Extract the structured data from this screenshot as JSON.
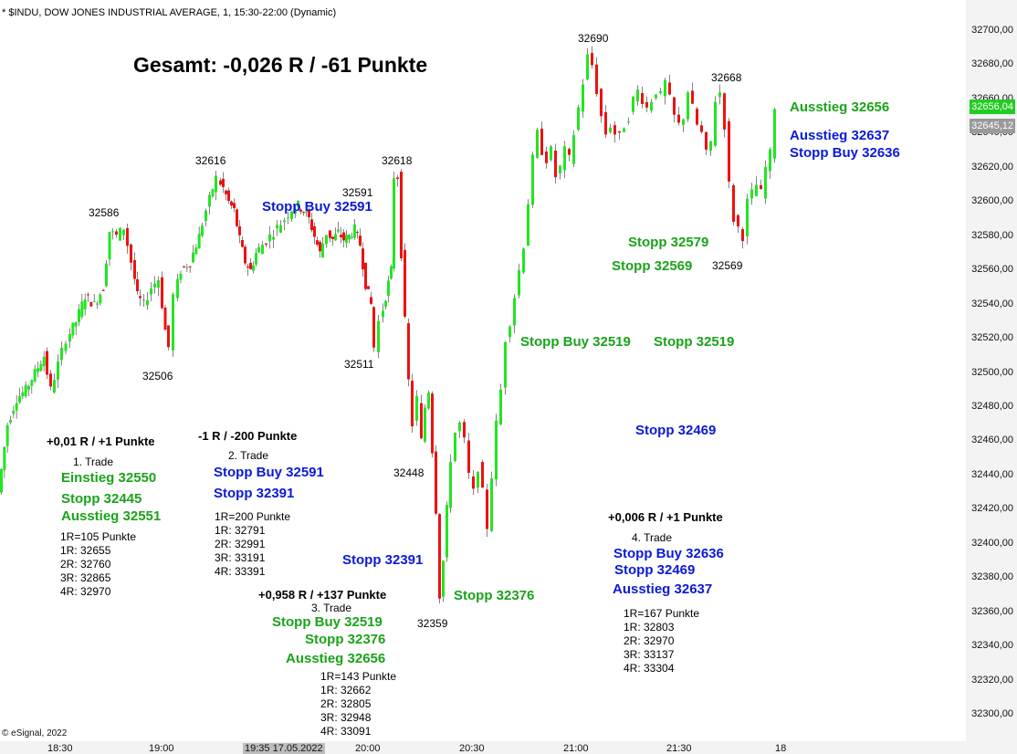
{
  "header": {
    "symbol_line": "* $INDU, DOW JONES INDUSTRIAL AVERAGE, 1, 15:30-22:00 (Dynamic)"
  },
  "summary": "Gesamt: -0,026 R / -61 Punkte",
  "copyright": "© eSignal, 2022",
  "colors": {
    "up": "#22e622",
    "down": "#ee1111",
    "green_text": "#1aa31a",
    "blue_text": "#0a1ad6"
  },
  "price_labels": {
    "p32586": "32586",
    "p32616": "32616",
    "p32591": "32591",
    "p32618": "32618",
    "p32690": "32690",
    "p32668": "32668",
    "p32506": "32506",
    "p32511": "32511",
    "p32448": "32448",
    "p32359": "32359",
    "p32569": "32569"
  },
  "annotations": {
    "stopp_buy_32591_top": "Stopp Buy 32591",
    "ausstieg_32656": "Ausstieg 32656",
    "ausstieg_32637": "Ausstieg 32637",
    "stopp_buy_32636": "Stopp Buy 32636",
    "stopp_32579": "Stopp 32579",
    "stopp_32569": "Stopp 32569",
    "stopp_buy_32519": "Stopp Buy 32519",
    "stopp_32519": "Stopp 32519",
    "stopp_32469": "Stopp 32469",
    "stopp_32391": "Stopp 32391",
    "stopp_32376": "Stopp 32376"
  },
  "trades": [
    {
      "result": "+0,01 R / +1 Punkte",
      "name": "1. Trade",
      "lines": [
        "Einstieg 32550",
        "Stopp 32445",
        "Ausstieg 32551"
      ],
      "targets": [
        "1R=105 Punkte",
        "1R: 32655",
        "2R: 32760",
        "3R: 32865",
        "4R: 32970"
      ]
    },
    {
      "result": "-1 R / -200 Punkte",
      "name": "2. Trade",
      "lines": [
        "Stopp Buy 32591",
        "Stopp 32391"
      ],
      "targets": [
        "1R=200 Punkte",
        "1R: 32791",
        "2R: 32991",
        "3R: 33191",
        "4R: 33391"
      ]
    },
    {
      "result": "+0,958 R / +137 Punkte",
      "name": "3. Trade",
      "lines": [
        "Stopp Buy 32519",
        "Stopp 32376",
        "Ausstieg 32656"
      ],
      "targets": [
        "1R=143 Punkte",
        "1R: 32662",
        "2R: 32805",
        "3R: 32948",
        "4R: 33091"
      ]
    },
    {
      "result": "+0,006 R / +1 Punkte",
      "name": "4. Trade",
      "lines": [
        "Stopp Buy 32636",
        "Stopp 32469",
        "Ausstieg 32637"
      ],
      "targets": [
        "1R=167 Punkte",
        "1R: 32803",
        "2R: 32970",
        "3R: 33137",
        "4R: 33304"
      ]
    }
  ],
  "price_axis": {
    "ticks": [
      "32700,00",
      "32680,00",
      "32660,00",
      "32640,00",
      "32620,00",
      "32600,00",
      "32580,00",
      "32560,00",
      "32540,00",
      "32520,00",
      "32500,00",
      "32480,00",
      "32460,00",
      "32440,00",
      "32420,00",
      "32400,00",
      "32380,00",
      "32360,00",
      "32340,00",
      "32320,00",
      "32300,00"
    ],
    "last_price": "32656,04",
    "ref_price": "32645,12"
  },
  "time_axis": {
    "labels": [
      "18:30",
      "19:00",
      "19:35 17.05.2022",
      "20:00",
      "20:30",
      "21:00",
      "21:30",
      "18"
    ]
  },
  "chart_data": {
    "type": "candlestick",
    "title": "* $INDU, DOW JONES INDUSTRIAL AVERAGE, 1, 15:30-22:00 (Dynamic)",
    "ylim": [
      32290,
      32710
    ],
    "y_ticks": [
      32700,
      32680,
      32660,
      32640,
      32620,
      32600,
      32580,
      32560,
      32540,
      32520,
      32500,
      32480,
      32460,
      32440,
      32420,
      32400,
      32380,
      32360,
      32340,
      32320,
      32300
    ],
    "price_path": [
      [
        0,
        32430
      ],
      [
        10,
        32470
      ],
      [
        20,
        32485
      ],
      [
        30,
        32490
      ],
      [
        40,
        32500
      ],
      [
        50,
        32510
      ],
      [
        58,
        32490
      ],
      [
        66,
        32505
      ],
      [
        75,
        32520
      ],
      [
        85,
        32530
      ],
      [
        95,
        32545
      ],
      [
        105,
        32540
      ],
      [
        115,
        32550
      ],
      [
        122,
        32583
      ],
      [
        130,
        32580
      ],
      [
        138,
        32585
      ],
      [
        146,
        32565
      ],
      [
        152,
        32545
      ],
      [
        160,
        32540
      ],
      [
        168,
        32550
      ],
      [
        176,
        32555
      ],
      [
        183,
        32525
      ],
      [
        188,
        32515
      ],
      [
        193,
        32545
      ],
      [
        200,
        32560
      ],
      [
        210,
        32565
      ],
      [
        220,
        32580
      ],
      [
        228,
        32595
      ],
      [
        235,
        32608
      ],
      [
        240,
        32614
      ],
      [
        246,
        32608
      ],
      [
        252,
        32600
      ],
      [
        258,
        32595
      ],
      [
        264,
        32578
      ],
      [
        270,
        32565
      ],
      [
        276,
        32560
      ],
      [
        282,
        32570
      ],
      [
        290,
        32575
      ],
      [
        298,
        32580
      ],
      [
        306,
        32585
      ],
      [
        314,
        32590
      ],
      [
        322,
        32596
      ],
      [
        328,
        32598
      ],
      [
        334,
        32595
      ],
      [
        340,
        32590
      ],
      [
        346,
        32580
      ],
      [
        352,
        32570
      ],
      [
        360,
        32582
      ],
      [
        366,
        32578
      ],
      [
        372,
        32582
      ],
      [
        378,
        32578
      ],
      [
        384,
        32580
      ],
      [
        390,
        32584
      ],
      [
        396,
        32575
      ],
      [
        402,
        32552
      ],
      [
        408,
        32540
      ],
      [
        413,
        32515
      ],
      [
        418,
        32530
      ],
      [
        424,
        32545
      ],
      [
        430,
        32560
      ],
      [
        434,
        32615
      ],
      [
        438,
        32615
      ],
      [
        442,
        32570
      ],
      [
        446,
        32530
      ],
      [
        450,
        32495
      ],
      [
        455,
        32470
      ],
      [
        460,
        32485
      ],
      [
        464,
        32460
      ],
      [
        468,
        32480
      ],
      [
        472,
        32490
      ],
      [
        476,
        32455
      ],
      [
        480,
        32420
      ],
      [
        484,
        32370
      ],
      [
        488,
        32390
      ],
      [
        492,
        32420
      ],
      [
        497,
        32450
      ],
      [
        502,
        32465
      ],
      [
        507,
        32470
      ],
      [
        512,
        32460
      ],
      [
        517,
        32440
      ],
      [
        522,
        32430
      ],
      [
        527,
        32445
      ],
      [
        532,
        32430
      ],
      [
        537,
        32410
      ],
      [
        542,
        32440
      ],
      [
        547,
        32470
      ],
      [
        552,
        32490
      ],
      [
        557,
        32520
      ],
      [
        562,
        32530
      ],
      [
        567,
        32545
      ],
      [
        572,
        32560
      ],
      [
        577,
        32575
      ],
      [
        582,
        32600
      ],
      [
        587,
        32625
      ],
      [
        592,
        32640
      ],
      [
        597,
        32630
      ],
      [
        602,
        32625
      ],
      [
        607,
        32630
      ],
      [
        612,
        32615
      ],
      [
        617,
        32620
      ],
      [
        622,
        32630
      ],
      [
        627,
        32625
      ],
      [
        632,
        32640
      ],
      [
        637,
        32655
      ],
      [
        642,
        32670
      ],
      [
        647,
        32685
      ],
      [
        652,
        32680
      ],
      [
        657,
        32665
      ],
      [
        662,
        32650
      ],
      [
        667,
        32640
      ],
      [
        672,
        32645
      ],
      [
        677,
        32640
      ],
      [
        682,
        32638
      ],
      [
        687,
        32645
      ],
      [
        692,
        32650
      ],
      [
        697,
        32660
      ],
      [
        702,
        32665
      ],
      [
        707,
        32660
      ],
      [
        712,
        32655
      ],
      [
        717,
        32660
      ],
      [
        722,
        32665
      ],
      [
        727,
        32662
      ],
      [
        732,
        32670
      ],
      [
        737,
        32660
      ],
      [
        742,
        32650
      ],
      [
        747,
        32645
      ],
      [
        752,
        32650
      ],
      [
        757,
        32665
      ],
      [
        762,
        32655
      ],
      [
        767,
        32645
      ],
      [
        772,
        32640
      ],
      [
        777,
        32628
      ],
      [
        782,
        32635
      ],
      [
        787,
        32660
      ],
      [
        792,
        32664
      ],
      [
        797,
        32645
      ],
      [
        802,
        32610
      ],
      [
        807,
        32590
      ],
      [
        812,
        32585
      ],
      [
        817,
        32580
      ],
      [
        822,
        32600
      ],
      [
        827,
        32605
      ],
      [
        832,
        32610
      ],
      [
        837,
        32605
      ],
      [
        842,
        32620
      ],
      [
        847,
        32628
      ],
      [
        852,
        32656
      ]
    ]
  }
}
